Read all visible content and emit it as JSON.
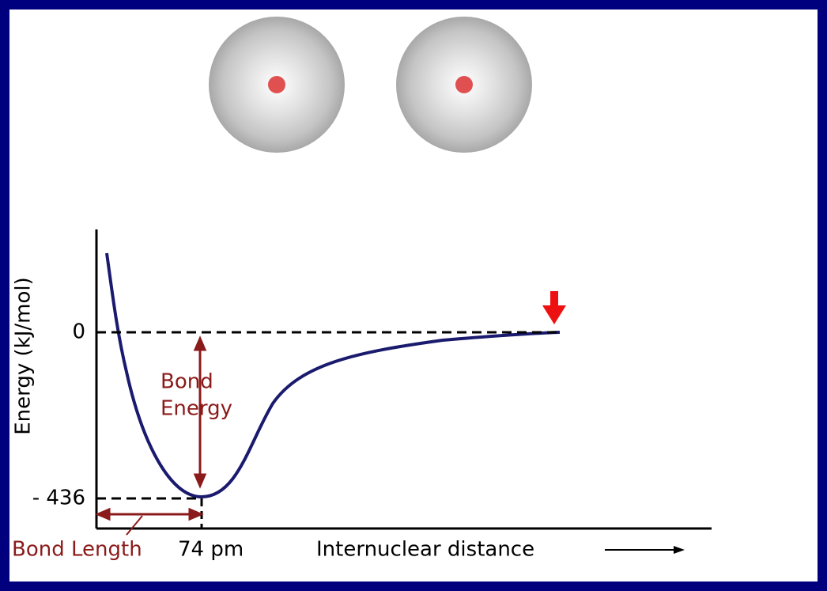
{
  "y_axis": {
    "label": "Energy (kJ/mol)",
    "ticks": [
      0,
      {
        "value": -436,
        "label": "- 436"
      }
    ]
  },
  "bond_energy_label": [
    "Bond",
    "Energy"
  ],
  "bond_length_label": "Bond Length",
  "bond_length_value": "74 pm",
  "x_axis_label": "Internuclear distance"
}
